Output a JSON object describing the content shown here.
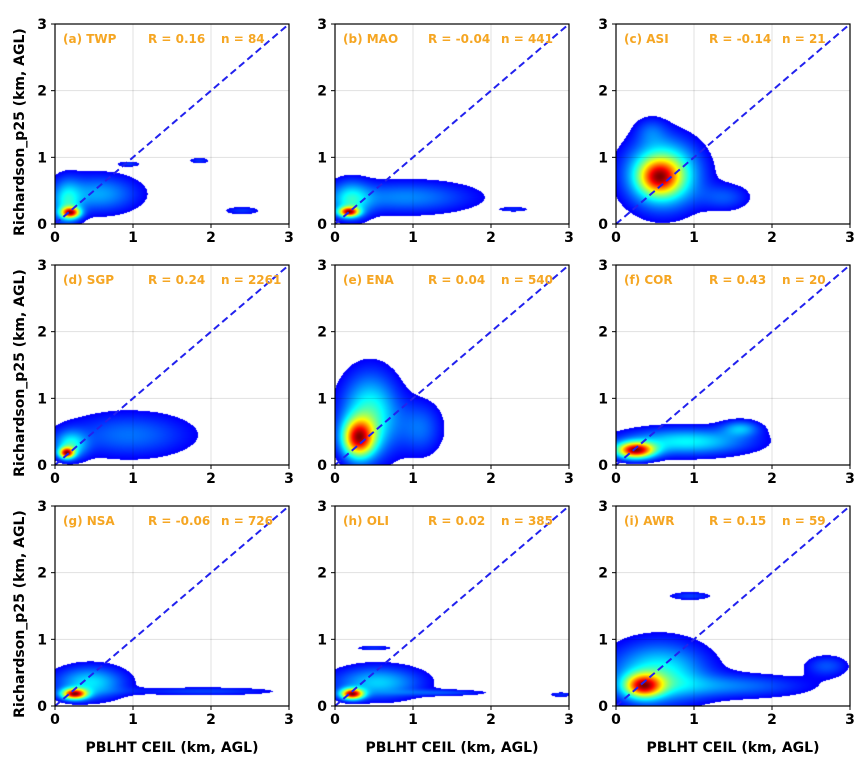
{
  "chart_data": {
    "type": "kde-density-grid",
    "x_label": "PBLHT CEIL (km, AGL)",
    "y_label": "Richardson_p25 (km, AGL)",
    "xlim": [
      0,
      3
    ],
    "ylim": [
      0,
      3
    ],
    "ticks": [
      0,
      1,
      2,
      3
    ],
    "grid": true,
    "one_to_one_line": {
      "color": "#2222ee",
      "style": "dashed"
    },
    "annotation_color": "#f5a623",
    "colormap": "jet",
    "panels": [
      {
        "label": "(a) TWP",
        "R": "R = 0.16",
        "n": "n = 84",
        "blobs": [
          {
            "cx": 0.55,
            "cy": 0.45,
            "rx": 0.65,
            "ry": 0.35,
            "w": 0.22
          },
          {
            "cx": 0.15,
            "cy": 0.3,
            "rx": 0.22,
            "ry": 0.42,
            "w": 0.25
          },
          {
            "cx": 0.2,
            "cy": 0.17,
            "rx": 0.15,
            "ry": 0.1,
            "w": 0.7
          },
          {
            "cx": 0.95,
            "cy": 0.9,
            "rx": 0.18,
            "ry": 0.05,
            "w": 0.1
          },
          {
            "cx": 1.85,
            "cy": 0.95,
            "rx": 0.17,
            "ry": 0.06,
            "w": 0.1
          },
          {
            "cx": 2.4,
            "cy": 0.2,
            "rx": 0.3,
            "ry": 0.08,
            "w": 0.1
          }
        ]
      },
      {
        "label": "(b) MAO",
        "R": "R = -0.04",
        "n": "n = 441",
        "blobs": [
          {
            "cx": 0.9,
            "cy": 0.4,
            "rx": 1.1,
            "ry": 0.3,
            "w": 0.18
          },
          {
            "cx": 0.2,
            "cy": 0.35,
            "rx": 0.3,
            "ry": 0.35,
            "w": 0.25
          },
          {
            "cx": 0.18,
            "cy": 0.18,
            "rx": 0.16,
            "ry": 0.09,
            "w": 0.7
          },
          {
            "cx": 2.3,
            "cy": 0.22,
            "rx": 0.25,
            "ry": 0.05,
            "w": 0.08
          }
        ]
      },
      {
        "label": "(c) ASI",
        "R": "R = -0.14",
        "n": "n = 21",
        "blobs": [
          {
            "cx": 0.6,
            "cy": 0.75,
            "rx": 0.55,
            "ry": 0.6,
            "w": 0.6
          },
          {
            "cx": 0.55,
            "cy": 0.7,
            "rx": 0.3,
            "ry": 0.3,
            "w": 0.5
          },
          {
            "cx": 1.4,
            "cy": 0.4,
            "rx": 0.4,
            "ry": 0.25,
            "w": 0.15
          },
          {
            "cx": 0.45,
            "cy": 1.4,
            "rx": 0.25,
            "ry": 0.25,
            "w": 0.12
          }
        ]
      },
      {
        "label": "(d) SGP",
        "R": "R = 0.24",
        "n": "n = 2261",
        "blobs": [
          {
            "cx": 0.95,
            "cy": 0.45,
            "rx": 1.0,
            "ry": 0.42,
            "w": 0.17
          },
          {
            "cx": 0.2,
            "cy": 0.3,
            "rx": 0.25,
            "ry": 0.25,
            "w": 0.3
          },
          {
            "cx": 0.15,
            "cy": 0.18,
            "rx": 0.12,
            "ry": 0.1,
            "w": 0.75
          }
        ]
      },
      {
        "label": "(e) ENA",
        "R": "R = 0.04",
        "n": "n = 540",
        "blobs": [
          {
            "cx": 0.45,
            "cy": 0.75,
            "rx": 0.45,
            "ry": 0.75,
            "w": 0.3
          },
          {
            "cx": 0.3,
            "cy": 0.4,
            "rx": 0.25,
            "ry": 0.35,
            "w": 0.6
          },
          {
            "cx": 1.1,
            "cy": 0.55,
            "rx": 0.35,
            "ry": 0.5,
            "w": 0.13
          }
        ]
      },
      {
        "label": "(f) COR",
        "R": "R = 0.43",
        "n": "n = 20",
        "blobs": [
          {
            "cx": 0.9,
            "cy": 0.35,
            "rx": 1.0,
            "ry": 0.25,
            "w": 0.18
          },
          {
            "cx": 0.25,
            "cy": 0.22,
            "rx": 0.3,
            "ry": 0.15,
            "w": 0.5
          },
          {
            "cx": 1.6,
            "cy": 0.55,
            "rx": 0.3,
            "ry": 0.15,
            "w": 0.12
          }
        ]
      },
      {
        "label": "(g) NSA",
        "R": "R = -0.06",
        "n": "n = 726",
        "blobs": [
          {
            "cx": 0.45,
            "cy": 0.35,
            "rx": 0.55,
            "ry": 0.3,
            "w": 0.25
          },
          {
            "cx": 0.25,
            "cy": 0.18,
            "rx": 0.2,
            "ry": 0.1,
            "w": 0.7
          },
          {
            "cx": 1.9,
            "cy": 0.22,
            "rx": 1.2,
            "ry": 0.08,
            "w": 0.1
          }
        ]
      },
      {
        "label": "(h) OLI",
        "R": "R = 0.02",
        "n": "n = 385",
        "blobs": [
          {
            "cx": 0.55,
            "cy": 0.35,
            "rx": 0.7,
            "ry": 0.3,
            "w": 0.22
          },
          {
            "cx": 0.22,
            "cy": 0.18,
            "rx": 0.18,
            "ry": 0.1,
            "w": 0.7
          },
          {
            "cx": 1.4,
            "cy": 0.2,
            "rx": 0.7,
            "ry": 0.06,
            "w": 0.1
          },
          {
            "cx": 0.5,
            "cy": 0.87,
            "rx": 0.3,
            "ry": 0.05,
            "w": 0.08
          },
          {
            "cx": 2.9,
            "cy": 0.17,
            "rx": 0.2,
            "ry": 0.05,
            "w": 0.08
          }
        ]
      },
      {
        "label": "(i) AWR",
        "R": "R = 0.15",
        "n": "n = 59",
        "blobs": [
          {
            "cx": 0.55,
            "cy": 0.5,
            "rx": 0.75,
            "ry": 0.55,
            "w": 0.3
          },
          {
            "cx": 0.35,
            "cy": 0.3,
            "rx": 0.3,
            "ry": 0.22,
            "w": 0.6
          },
          {
            "cx": 1.5,
            "cy": 0.3,
            "rx": 1.2,
            "ry": 0.22,
            "w": 0.15
          },
          {
            "cx": 2.7,
            "cy": 0.6,
            "rx": 0.35,
            "ry": 0.2,
            "w": 0.12
          },
          {
            "cx": 0.95,
            "cy": 1.65,
            "rx": 0.35,
            "ry": 0.08,
            "w": 0.1
          }
        ]
      }
    ]
  }
}
